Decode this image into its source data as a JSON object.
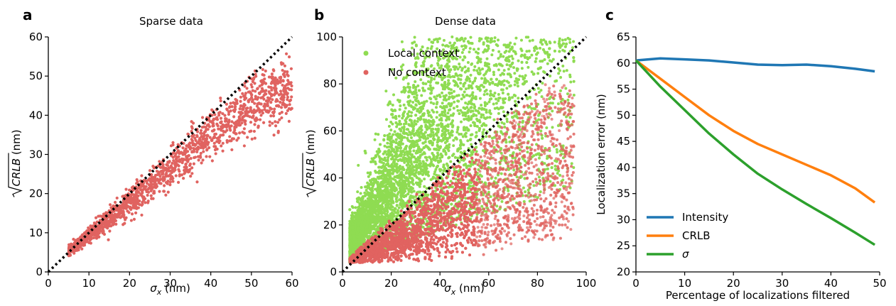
{
  "chart_data": [
    {
      "panel": "a",
      "type": "scatter",
      "title": "Sparse data",
      "xlabel": "σx (nm)",
      "ylabel": "√CRLB (nm)",
      "xlim": [
        0,
        60
      ],
      "ylim": [
        0,
        60
      ],
      "xticks": [
        "0",
        "10",
        "20",
        "30",
        "40",
        "50",
        "60"
      ],
      "yticks": [
        "0",
        "10",
        "20",
        "30",
        "40",
        "50",
        "60"
      ],
      "identity_line": true,
      "series": [
        {
          "color": "#e06360",
          "trend": [
            [
              5,
              5.5
            ],
            [
              10,
              9.5
            ],
            [
              20,
              18.5
            ],
            [
              30,
              27.5
            ],
            [
              40,
              36.5
            ],
            [
              50,
              44
            ],
            [
              58,
              48
            ]
          ],
          "x_range": [
            5,
            60
          ],
          "n_points": 1500
        }
      ]
    },
    {
      "panel": "b",
      "type": "scatter",
      "title": "Dense data",
      "xlabel": "σx (nm)",
      "ylabel": "√CRLB (nm)",
      "xlim": [
        0,
        100
      ],
      "ylim": [
        0,
        100
      ],
      "xticks": [
        "0",
        "20",
        "40",
        "60",
        "80",
        "100"
      ],
      "yticks": [
        "0",
        "20",
        "40",
        "60",
        "80",
        "100"
      ],
      "identity_line": true,
      "legend": {
        "position": "upper-left"
      },
      "series": [
        {
          "name": "Local context",
          "color": "#8fdc52",
          "x_range": [
            3,
            95
          ],
          "y_range": [
            4,
            100
          ],
          "n_points": 7000
        },
        {
          "name": "No context",
          "color": "#e06360",
          "x_range": [
            3,
            95
          ],
          "y_range": [
            4,
            80
          ],
          "n_points": 7000
        }
      ]
    },
    {
      "panel": "c",
      "type": "line",
      "xlabel": "Percentage of localizations filtered",
      "ylabel": "Localization error (nm)",
      "xlim": [
        0,
        50
      ],
      "ylim": [
        20,
        65
      ],
      "xticks": [
        "0",
        "10",
        "20",
        "30",
        "40",
        "50"
      ],
      "yticks": [
        "20",
        "25",
        "30",
        "35",
        "40",
        "45",
        "50",
        "55",
        "60",
        "65"
      ],
      "legend": {
        "position": "lower-left"
      },
      "x": [
        0,
        5,
        10,
        15,
        20,
        25,
        30,
        35,
        40,
        45,
        49
      ],
      "series": [
        {
          "name": "Intensity",
          "color": "#1f77b4",
          "values": [
            60.5,
            60.9,
            60.7,
            60.5,
            60.1,
            59.7,
            59.6,
            59.7,
            59.4,
            58.9,
            58.4
          ]
        },
        {
          "name": "CRLB",
          "color": "#ff7f0e",
          "values": [
            60.5,
            57.0,
            53.5,
            50.0,
            47.0,
            44.5,
            42.5,
            40.5,
            38.5,
            36.0,
            33.3
          ]
        },
        {
          "name": "σ",
          "color": "#2ca02c",
          "values": [
            60.5,
            55.5,
            51.0,
            46.5,
            42.5,
            38.8,
            35.8,
            33.0,
            30.3,
            27.5,
            25.2
          ]
        }
      ]
    }
  ]
}
